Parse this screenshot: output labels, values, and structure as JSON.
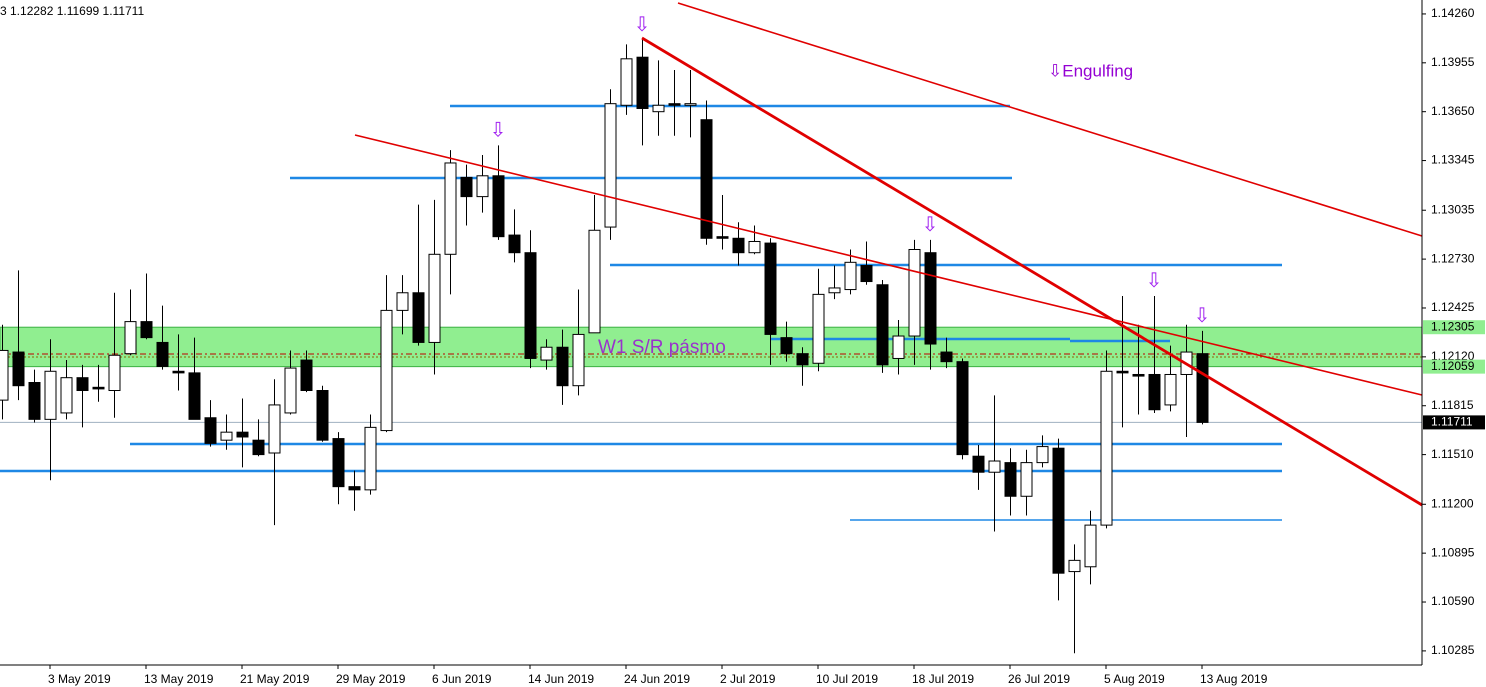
{
  "chart_data": {
    "type": "candlestick",
    "header": "3 1.12282 1.11699 1.11711",
    "categories": [
      null,
      null,
      null,
      "3 May 2019",
      null,
      null,
      null,
      null,
      null,
      "13 May 2019",
      null,
      null,
      null,
      null,
      null,
      "21 May 2019",
      null,
      null,
      null,
      null,
      null,
      "29 May 2019",
      null,
      null,
      null,
      null,
      null,
      "6 Jun 2019",
      null,
      null,
      null,
      null,
      null,
      "14 Jun 2019",
      null,
      null,
      null,
      null,
      null,
      "24 Jun 2019",
      null,
      null,
      null,
      null,
      null,
      "2 Jul 2019",
      null,
      null,
      null,
      null,
      null,
      "10 Jul 2019",
      null,
      null,
      null,
      null,
      null,
      "18 Jul 2019",
      null,
      null,
      null,
      null,
      null,
      "26 Jul 2019",
      null,
      null,
      null,
      null,
      null,
      "5 Aug 2019",
      null,
      null,
      null,
      null,
      null,
      "13 Aug 2019"
    ],
    "open": [
      1.1185,
      1.1215,
      1.1196,
      1.1173,
      1.1177,
      1.1199,
      1.1193,
      1.1191,
      1.1214,
      1.1234,
      1.1221,
      1.1203,
      1.1202,
      1.1174,
      1.116,
      1.1165,
      1.116,
      1.1152,
      1.1177,
      1.121,
      1.1191,
      1.1161,
      1.1131,
      1.1129,
      1.1166,
      1.1241,
      1.1252,
      1.1221,
      1.1276,
      1.1324,
      1.1312,
      1.1325,
      1.1288,
      1.1277,
      1.121,
      1.1218,
      1.1194,
      1.1227,
      1.1293,
      1.1369,
      1.1399,
      1.1365,
      1.137,
      1.1369,
      1.136,
      1.1287,
      1.1286,
      1.1277,
      1.1283,
      1.1224,
      1.1214,
      1.1208,
      1.1252,
      1.1254,
      1.1269,
      1.1257,
      1.1211,
      1.1225,
      1.1277,
      1.1215,
      1.1209,
      1.115,
      1.114,
      1.1146,
      1.1125,
      1.1146,
      1.1155,
      1.1078,
      1.1081,
      1.1107,
      1.1203,
      1.1201,
      1.1201,
      1.1182,
      1.1201,
      1.1214
    ],
    "high": [
      1.1232,
      1.1266,
      1.1204,
      1.1223,
      1.121,
      1.1207,
      1.1207,
      1.1252,
      1.1254,
      1.1264,
      1.1244,
      1.1226,
      1.1224,
      1.1185,
      1.1176,
      1.1186,
      1.1173,
      1.1198,
      1.1216,
      1.1216,
      1.1194,
      1.1165,
      1.1141,
      1.1176,
      1.1263,
      1.1263,
      1.1307,
      1.131,
      1.1341,
      1.1332,
      1.1338,
      1.1344,
      1.1304,
      1.1291,
      1.1223,
      1.1229,
      1.1254,
      1.1313,
      1.1379,
      1.1407,
      1.141,
      1.1397,
      1.1391,
      1.1391,
      1.1372,
      1.1313,
      1.1296,
      1.1294,
      1.1286,
      1.1234,
      1.1218,
      1.1267,
      1.1269,
      1.1279,
      1.1284,
      1.126,
      1.1235,
      1.1285,
      1.1285,
      1.1224,
      1.1211,
      1.1157,
      1.1188,
      1.1155,
      1.1154,
      1.1163,
      1.1161,
      1.1095,
      1.1116,
      1.1216,
      1.125,
      1.1232,
      1.125,
      1.1219,
      1.1232,
      1.12282
    ],
    "low": [
      1.1173,
      1.1185,
      1.1171,
      1.1135,
      1.1173,
      1.1168,
      1.1184,
      1.1174,
      1.1213,
      1.1223,
      1.1204,
      1.1191,
      1.1173,
      1.1156,
      1.1154,
      1.1143,
      1.115,
      1.1107,
      1.1176,
      1.119,
      1.1159,
      1.112,
      1.1116,
      1.1126,
      1.1165,
      1.1226,
      1.1219,
      1.1201,
      1.1251,
      1.1294,
      1.1302,
      1.1285,
      1.1271,
      1.1205,
      1.1204,
      1.1182,
      1.1188,
      1.1227,
      1.1285,
      1.1363,
      1.1344,
      1.135,
      1.135,
      1.1349,
      1.1282,
      1.1279,
      1.1269,
      1.1276,
      1.1207,
      1.1209,
      1.1194,
      1.1203,
      1.1248,
      1.1251,
      1.1257,
      1.1202,
      1.1201,
      1.1207,
      1.1204,
      1.1205,
      1.1148,
      1.1129,
      1.1103,
      1.1113,
      1.1113,
      1.1143,
      1.106,
      1.1027,
      1.107,
      1.1105,
      1.1168,
      1.1176,
      1.1177,
      1.1178,
      1.1162,
      1.11699
    ],
    "close": [
      1.1216,
      1.1194,
      1.1173,
      1.1203,
      1.1199,
      1.1191,
      1.1192,
      1.1213,
      1.1234,
      1.1224,
      1.1206,
      1.1202,
      1.1173,
      1.1158,
      1.1165,
      1.1162,
      1.1151,
      1.1182,
      1.1205,
      1.1191,
      1.116,
      1.1131,
      1.1129,
      1.1168,
      1.1241,
      1.1252,
      1.1221,
      1.1276,
      1.1333,
      1.1312,
      1.1325,
      1.1287,
      1.1277,
      1.1211,
      1.1218,
      1.1194,
      1.1226,
      1.1291,
      1.137,
      1.1398,
      1.1367,
      1.1369,
      1.1369,
      1.137,
      1.1286,
      1.1286,
      1.1277,
      1.1284,
      1.1226,
      1.1214,
      1.1207,
      1.1251,
      1.1255,
      1.1271,
      1.1259,
      1.1207,
      1.1225,
      1.1279,
      1.122,
      1.1209,
      1.1151,
      1.114,
      1.1147,
      1.1125,
      1.1146,
      1.1156,
      1.1077,
      1.1085,
      1.1107,
      1.1203,
      1.1202,
      1.12,
      1.1179,
      1.1201,
      1.1215,
      1.11711
    ],
    "up_color": "#ffffff",
    "down_color": "#000000",
    "signals": [
      null,
      null,
      null,
      null,
      null,
      null,
      null,
      null,
      null,
      null,
      null,
      null,
      null,
      null,
      null,
      null,
      null,
      null,
      null,
      null,
      null,
      null,
      null,
      null,
      null,
      null,
      null,
      null,
      null,
      null,
      null,
      "⇩",
      null,
      null,
      null,
      null,
      null,
      null,
      null,
      null,
      "⇩",
      null,
      null,
      null,
      null,
      null,
      null,
      null,
      null,
      null,
      null,
      null,
      null,
      null,
      null,
      null,
      null,
      null,
      "⇩",
      null,
      null,
      null,
      null,
      null,
      null,
      null,
      null,
      null,
      null,
      null,
      null,
      null,
      "⇩",
      null,
      null,
      "⇩"
    ],
    "signal_note": "⇩Engulfing",
    "zone": {
      "label": "W1 S/R pásmo",
      "color": "#90ee90",
      "range": [
        {
          "value": 1.12059,
          "label": "1.12059"
        },
        {
          "value": 1.12305,
          "label": "1.12305"
        }
      ]
    },
    "current_price": {
      "value": 1.11711,
      "label": "1.11711"
    },
    "ylim": [
      1.10197,
      1.14347
    ],
    "yticks": [
      {
        "value": 1.1426,
        "label": "1.14260"
      },
      {
        "value": 1.13955,
        "label": "1.13955"
      },
      {
        "value": 1.1365,
        "label": "1.13650"
      },
      {
        "value": 1.13345,
        "label": "1.13345"
      },
      {
        "value": 1.13035,
        "label": "1.13035"
      },
      {
        "value": 1.1273,
        "label": "1.12730"
      },
      {
        "value": 1.12425,
        "label": "1.12425"
      },
      {
        "value": 1.1212,
        "label": "1.12120"
      },
      {
        "value": 1.11815,
        "label": "1.11815"
      },
      {
        "value": 1.1151,
        "label": "1.11510"
      },
      {
        "value": 1.112,
        "label": "1.11200"
      },
      {
        "value": 1.10895,
        "label": "1.10895"
      },
      {
        "value": 1.1059,
        "label": "1.10590"
      },
      {
        "value": 1.10285,
        "label": "1.10285"
      }
    ]
  }
}
